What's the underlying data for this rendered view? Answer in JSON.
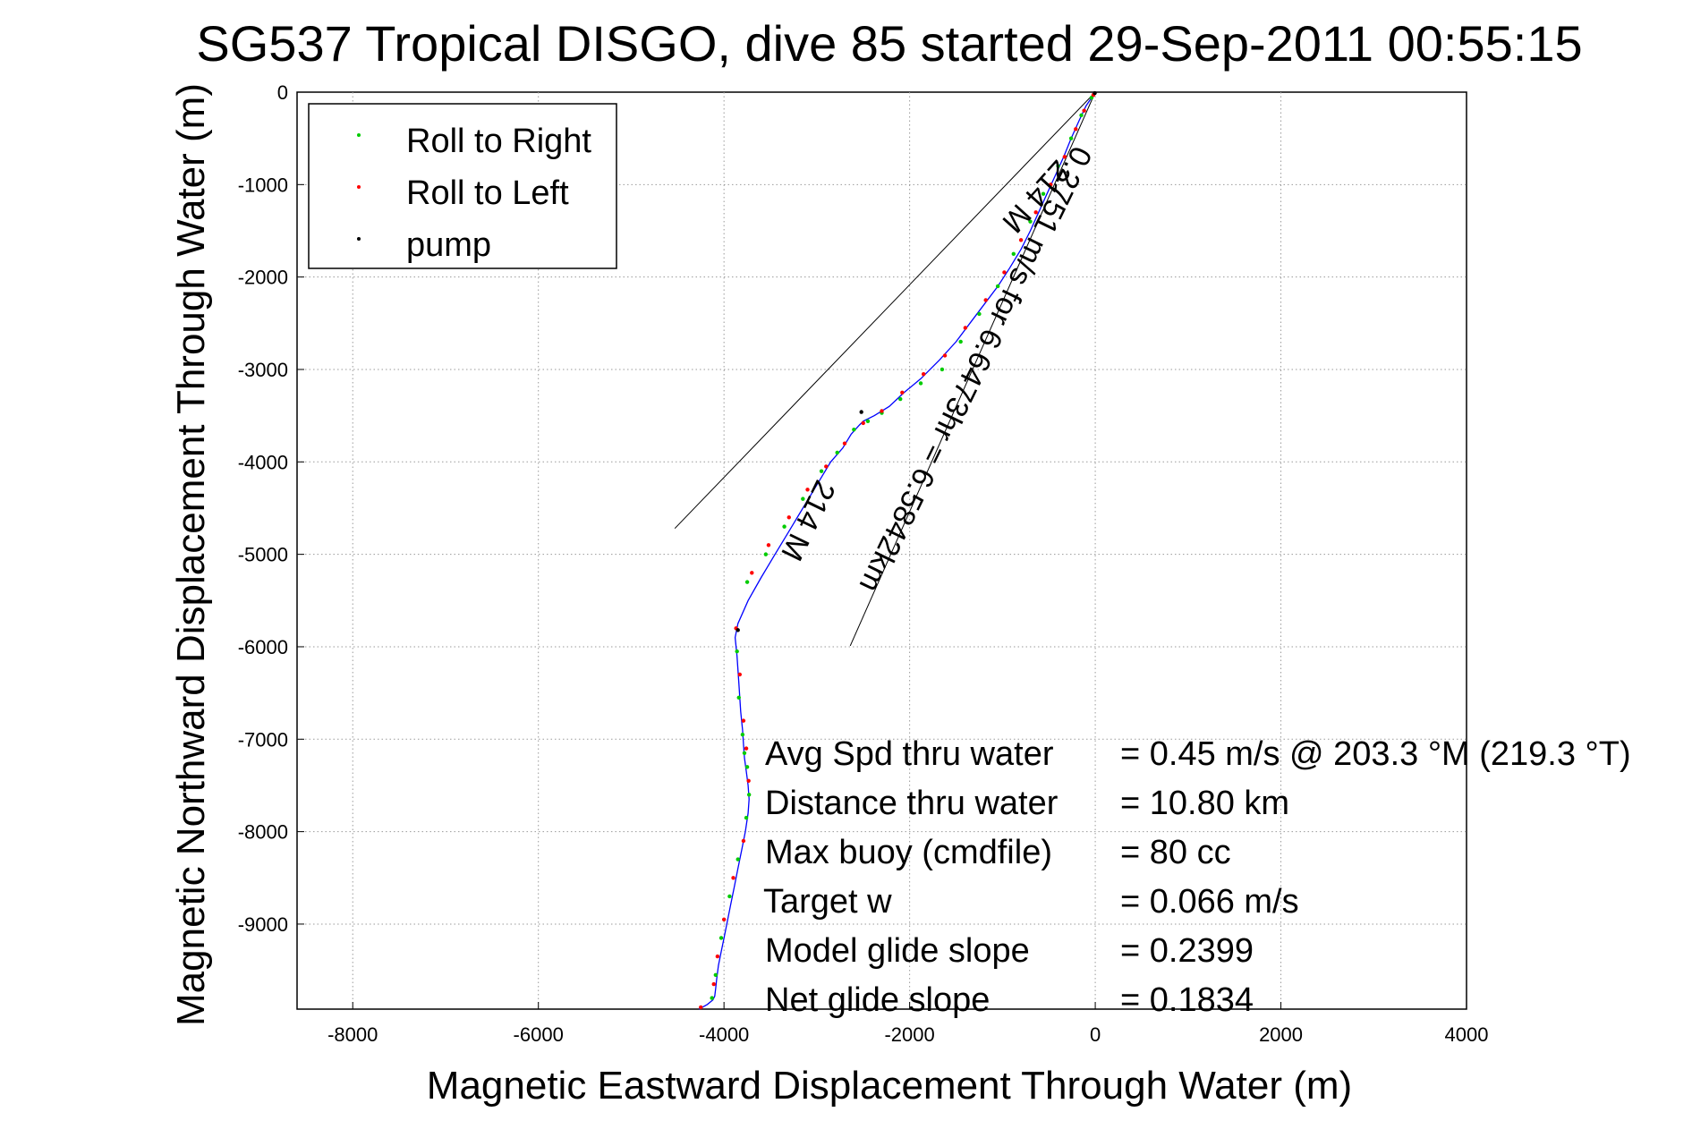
{
  "chart_data": {
    "type": "line",
    "title": "SG537 Tropical DISGO, dive 85 started 29-Sep-2011 00:55:15",
    "xlabel": "Magnetic Eastward Displacement Through Water (m)",
    "ylabel": "Magnetic Northward Displacement Through Water (m)",
    "xlim": [
      -8600,
      4000
    ],
    "ylim": [
      -9920,
      0
    ],
    "xticks": [
      -8000,
      -6000,
      -4000,
      -2000,
      0,
      2000,
      4000
    ],
    "yticks": [
      0,
      -1000,
      -2000,
      -3000,
      -4000,
      -5000,
      -6000,
      -7000,
      -8000,
      -9000
    ],
    "grid": true,
    "legend_position": "top-left",
    "legend": [
      {
        "label": "Roll to Right",
        "color": "#00cc00"
      },
      {
        "label": "Roll to Left",
        "color": "#ff0000"
      },
      {
        "label": "pump",
        "color": "#000000"
      }
    ],
    "track": {
      "name": "track",
      "color": "#0000ff",
      "x": [
        0,
        -100,
        -170,
        -260,
        -340,
        -430,
        -520,
        -610,
        -700,
        -800,
        -920,
        -1050,
        -1200,
        -1350,
        -1500,
        -1680,
        -1880,
        -2060,
        -2220,
        -2380,
        -2500,
        -2540,
        -2630,
        -2720,
        -2850,
        -3000,
        -3150,
        -3300,
        -3450,
        -3600,
        -3740,
        -3850,
        -3880,
        -3860,
        -3840,
        -3820,
        -3800,
        -3790,
        -3780,
        -3760,
        -3740,
        -3730,
        -3740,
        -3770,
        -3810,
        -3850,
        -3890,
        -3930,
        -3970,
        -4000,
        -4030,
        -4060,
        -4080,
        -4090,
        -4100,
        -4120,
        -4180,
        -4270
      ],
      "y": [
        0,
        -150,
        -300,
        -500,
        -700,
        -900,
        -1100,
        -1300,
        -1500,
        -1700,
        -1900,
        -2100,
        -2300,
        -2500,
        -2700,
        -2900,
        -3100,
        -3250,
        -3400,
        -3500,
        -3560,
        -3600,
        -3700,
        -3850,
        -4000,
        -4250,
        -4500,
        -4750,
        -5000,
        -5250,
        -5500,
        -5750,
        -5900,
        -6100,
        -6400,
        -6700,
        -6900,
        -7050,
        -7200,
        -7350,
        -7500,
        -7650,
        -7800,
        -8000,
        -8200,
        -8400,
        -8600,
        -8800,
        -9000,
        -9150,
        -9300,
        -9450,
        -9600,
        -9700,
        -9780,
        -9820,
        -9870,
        -9920
      ]
    },
    "markers": {
      "roll_right": {
        "x": [
          -40,
          -150,
          -260,
          -400,
          -560,
          -700,
          -880,
          -1050,
          -1250,
          -1450,
          -1650,
          -1880,
          -2100,
          -2300,
          -2450,
          -2600,
          -2780,
          -2950,
          -3150,
          -3350,
          -3550,
          -3750,
          -3860,
          -3840,
          -3800,
          -3780,
          -3750,
          -3730,
          -3760,
          -3850,
          -3940,
          -4030,
          -4090,
          -4130
        ],
        "y": [
          -60,
          -250,
          -500,
          -800,
          -1100,
          -1400,
          -1750,
          -2100,
          -2400,
          -2700,
          -3000,
          -3150,
          -3320,
          -3470,
          -3560,
          -3650,
          -3900,
          -4100,
          -4400,
          -4700,
          -5000,
          -5300,
          -6050,
          -6550,
          -6950,
          -7150,
          -7300,
          -7600,
          -7850,
          -8300,
          -8700,
          -9150,
          -9550,
          -9800
        ]
      },
      "roll_left": {
        "x": [
          -20,
          -120,
          -210,
          -330,
          -480,
          -640,
          -800,
          -980,
          -1180,
          -1400,
          -1620,
          -1850,
          -2080,
          -2300,
          -2500,
          -2700,
          -2900,
          -3100,
          -3300,
          -3520,
          -3700,
          -3870,
          -3830,
          -3790,
          -3760,
          -3735,
          -3790,
          -3900,
          -4000,
          -4070,
          -4110,
          -4250
        ],
        "y": [
          -30,
          -200,
          -400,
          -700,
          -1000,
          -1300,
          -1600,
          -1950,
          -2250,
          -2550,
          -2850,
          -3050,
          -3250,
          -3450,
          -3580,
          -3800,
          -4050,
          -4300,
          -4600,
          -4900,
          -5200,
          -5800,
          -6300,
          -6800,
          -7100,
          -7450,
          -8100,
          -8500,
          -8950,
          -9350,
          -9650,
          -9900
        ]
      },
      "pump": {
        "x": [
          -5,
          -2520,
          -3850
        ],
        "y": [
          -10,
          -3460,
          -5820
        ]
      }
    },
    "cone_lines": [
      {
        "x": [
          0,
          -4530
        ],
        "y": [
          0,
          -4720
        ]
      },
      {
        "x": [
          0,
          -2640
        ],
        "y": [
          0,
          -5990
        ]
      }
    ],
    "annotations": {
      "rotated_1": "214 M",
      "rotated_2": "0.2751 m/s for 6.6473hr = 6.5842km",
      "rotated_3": "214 M"
    },
    "stats": [
      {
        "label": "Avg Spd thru water",
        "value": "=  0.45 m/s @ 203.3 °M (219.3 °T)"
      },
      {
        "label": "Distance thru water",
        "value": "= 10.80 km"
      },
      {
        "label": "Max buoy (cmdfile)",
        "value": "= 80 cc"
      },
      {
        "label": "Target w",
        "value": "= 0.066 m/s"
      },
      {
        "label": "Model glide slope",
        "value": "= 0.2399"
      },
      {
        "label": "Net glide slope",
        "value": "= 0.1834"
      }
    ]
  }
}
